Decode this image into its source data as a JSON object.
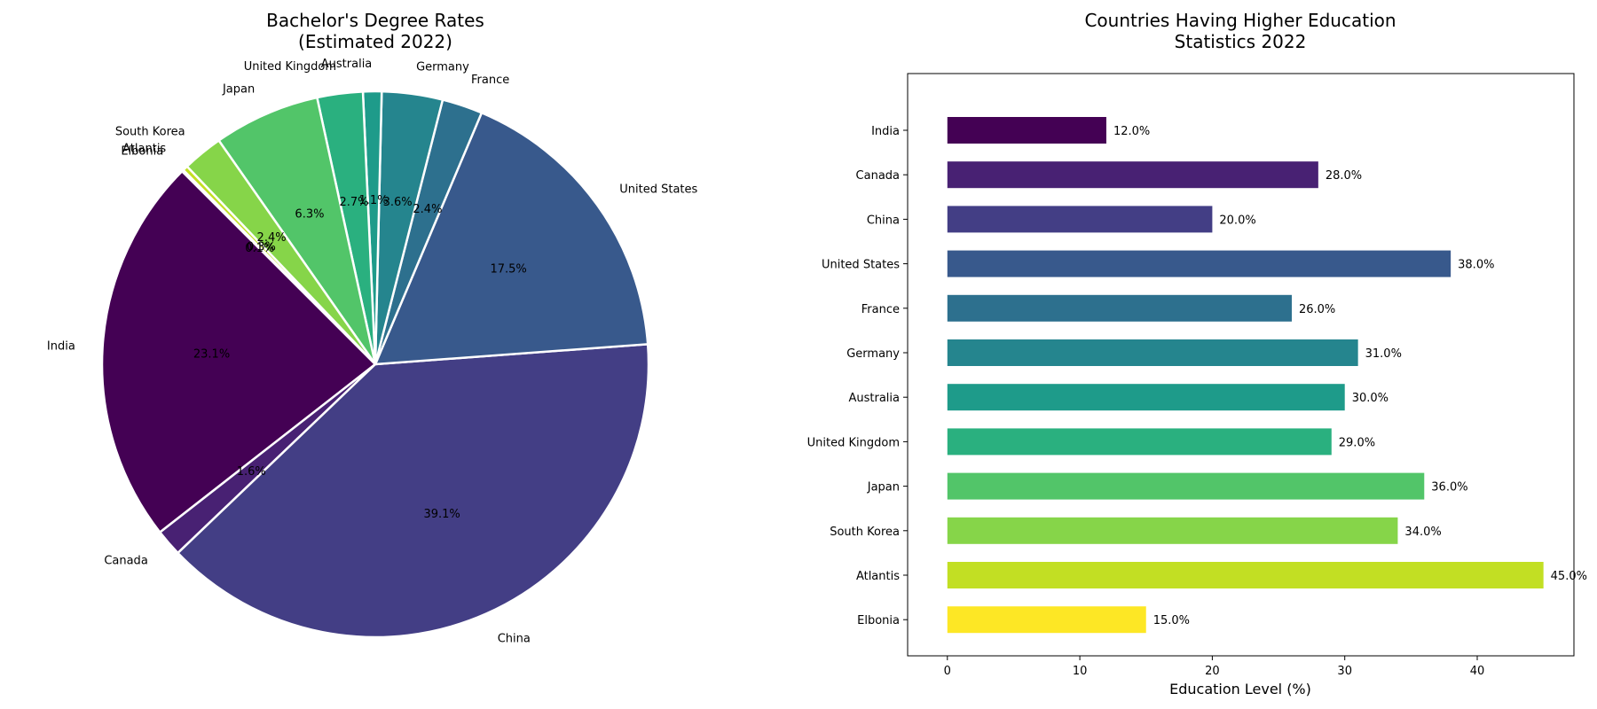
{
  "chart_data": [
    {
      "type": "pie",
      "title_line1": "Bachelor's Degree Rates",
      "title_line2": "(Estimated 2022)",
      "labels": [
        "India",
        "Canada",
        "China",
        "United States",
        "France",
        "Germany",
        "Australia",
        "United Kingdom",
        "Japan",
        "South Korea",
        "Atlantis",
        "Elbonia"
      ],
      "values": [
        23.1,
        1.6,
        39.1,
        17.5,
        2.4,
        3.6,
        1.1,
        2.7,
        6.3,
        2.4,
        0.3,
        0.1
      ],
      "pct_labels": [
        "23.1%",
        "1.6%",
        "39.1%",
        "17.5%",
        "2.4%",
        "3.6%",
        "1.1%",
        "2.7%",
        "6.3%",
        "2.4%",
        "0.3%",
        "0.1%"
      ],
      "start_angle_deg": 135,
      "direction": "counterclockwise",
      "colors": [
        "#440154",
        "#482173",
        "#433e85",
        "#38598c",
        "#2d708e",
        "#25858e",
        "#1e9b8a",
        "#2ab07f",
        "#52c569",
        "#86d549",
        "#c2df23",
        "#fde725"
      ]
    },
    {
      "type": "bar",
      "orientation": "horizontal",
      "title_line1": "Countries Having Higher Education",
      "title_line2": "Statistics 2022",
      "categories": [
        "India",
        "Canada",
        "China",
        "United States",
        "France",
        "Germany",
        "Australia",
        "United Kingdom",
        "Japan",
        "South Korea",
        "Atlantis",
        "Elbonia"
      ],
      "values": [
        12.0,
        28.0,
        20.0,
        38.0,
        26.0,
        31.0,
        30.0,
        29.0,
        36.0,
        34.0,
        45.0,
        15.0
      ],
      "value_labels": [
        "12.0%",
        "28.0%",
        "20.0%",
        "38.0%",
        "26.0%",
        "31.0%",
        "30.0%",
        "29.0%",
        "36.0%",
        "34.0%",
        "45.0%",
        "15.0%"
      ],
      "xlabel": "Education Level (%)",
      "xlim": [
        -3,
        47.3
      ],
      "xticks": [
        0,
        10,
        20,
        30,
        40
      ],
      "colors": [
        "#440154",
        "#482173",
        "#433e85",
        "#38598c",
        "#2d708e",
        "#25858e",
        "#1e9b8a",
        "#2ab07f",
        "#52c569",
        "#86d549",
        "#c2df23",
        "#fde725"
      ]
    }
  ]
}
